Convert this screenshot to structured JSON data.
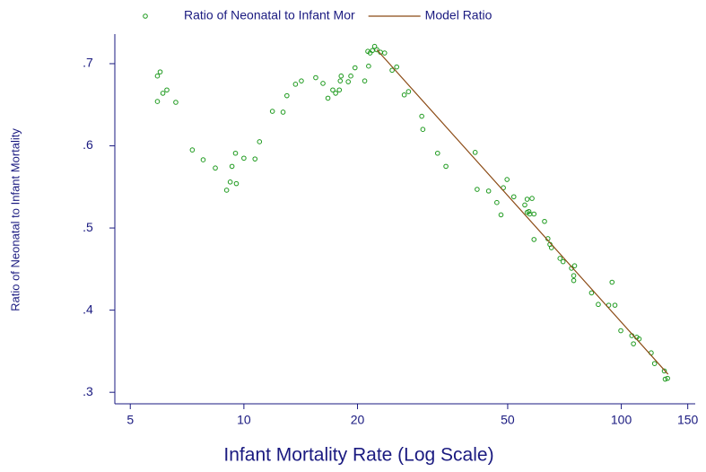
{
  "chart_data": {
    "type": "scatter",
    "x_label": "Infant Mortality Rate (Log Scale)",
    "y_label": "Ratio of Neonatal to Infant Mortality",
    "xscale": "log",
    "grid": false,
    "legend": "top",
    "xlim": [
      4.55,
      157
    ],
    "ylim": [
      0.286,
      0.736
    ],
    "xticks": [
      5,
      10,
      20,
      50,
      100,
      150
    ],
    "yticks": [
      {
        "value": 0.3,
        "label": ".3"
      },
      {
        "value": 0.4,
        "label": ".4"
      },
      {
        "value": 0.5,
        "label": ".5"
      },
      {
        "value": 0.6,
        "label": ".6"
      },
      {
        "value": 0.7,
        "label": ".7"
      }
    ],
    "series": [
      {
        "name": "Ratio of Neonatal to Infant Mor",
        "kind": "points",
        "color": "#1e9a1e",
        "x": [
          5.9,
          5.9,
          6.0,
          6.1,
          6.25,
          6.6,
          7.3,
          7.8,
          8.4,
          9.0,
          9.2,
          9.3,
          9.5,
          9.55,
          10,
          10.7,
          11.0,
          11.9,
          12.7,
          13.0,
          13.7,
          14.2,
          15.5,
          16.2,
          16.7,
          17.2,
          17.5,
          17.9,
          18.0,
          18.1,
          18.9,
          19.2,
          19.7,
          20.9,
          21.3,
          21.4,
          21.6,
          21.9,
          22.2,
          22.5,
          23.0,
          23.6,
          24.7,
          25.4,
          26.6,
          27.3,
          29.6,
          29.8,
          32.6,
          34.3,
          41.0,
          41.5,
          44.5,
          46.8,
          48.0,
          48.7,
          49.8,
          51.9,
          55.5,
          56.3,
          56.3,
          56.9,
          57.2,
          58.0,
          58.7,
          58.7,
          62.6,
          63.9,
          64.7,
          65.3,
          68.8,
          70.1,
          73.8,
          74.8,
          74.8,
          75.2,
          83.4,
          86.9,
          92.6,
          94.5,
          96.2,
          99.7,
          106.6,
          107.7,
          109.9,
          111.5,
          120,
          122.5,
          130.0,
          130.7,
          132.6
        ],
        "values": [
          0.654,
          0.685,
          0.69,
          0.664,
          0.668,
          0.653,
          0.595,
          0.583,
          0.573,
          0.546,
          0.556,
          0.575,
          0.591,
          0.554,
          0.585,
          0.584,
          0.605,
          0.642,
          0.641,
          0.661,
          0.675,
          0.679,
          0.683,
          0.676,
          0.658,
          0.668,
          0.664,
          0.668,
          0.679,
          0.685,
          0.678,
          0.685,
          0.695,
          0.679,
          0.715,
          0.697,
          0.713,
          0.716,
          0.721,
          0.717,
          0.714,
          0.713,
          0.692,
          0.696,
          0.662,
          0.666,
          0.636,
          0.62,
          0.591,
          0.575,
          0.592,
          0.547,
          0.545,
          0.531,
          0.516,
          0.549,
          0.559,
          0.538,
          0.528,
          0.535,
          0.519,
          0.52,
          0.517,
          0.536,
          0.517,
          0.486,
          0.508,
          0.487,
          0.48,
          0.476,
          0.463,
          0.459,
          0.451,
          0.442,
          0.436,
          0.454,
          0.421,
          0.407,
          0.406,
          0.434,
          0.406,
          0.375,
          0.369,
          0.359,
          0.367,
          0.365,
          0.348,
          0.335,
          0.326,
          0.316,
          0.317
        ]
      },
      {
        "name": "Model Ratio",
        "kind": "line",
        "color": "#8b4a14",
        "x": [
          22.5,
          133
        ],
        "values": [
          0.717,
          0.322
        ]
      }
    ]
  }
}
